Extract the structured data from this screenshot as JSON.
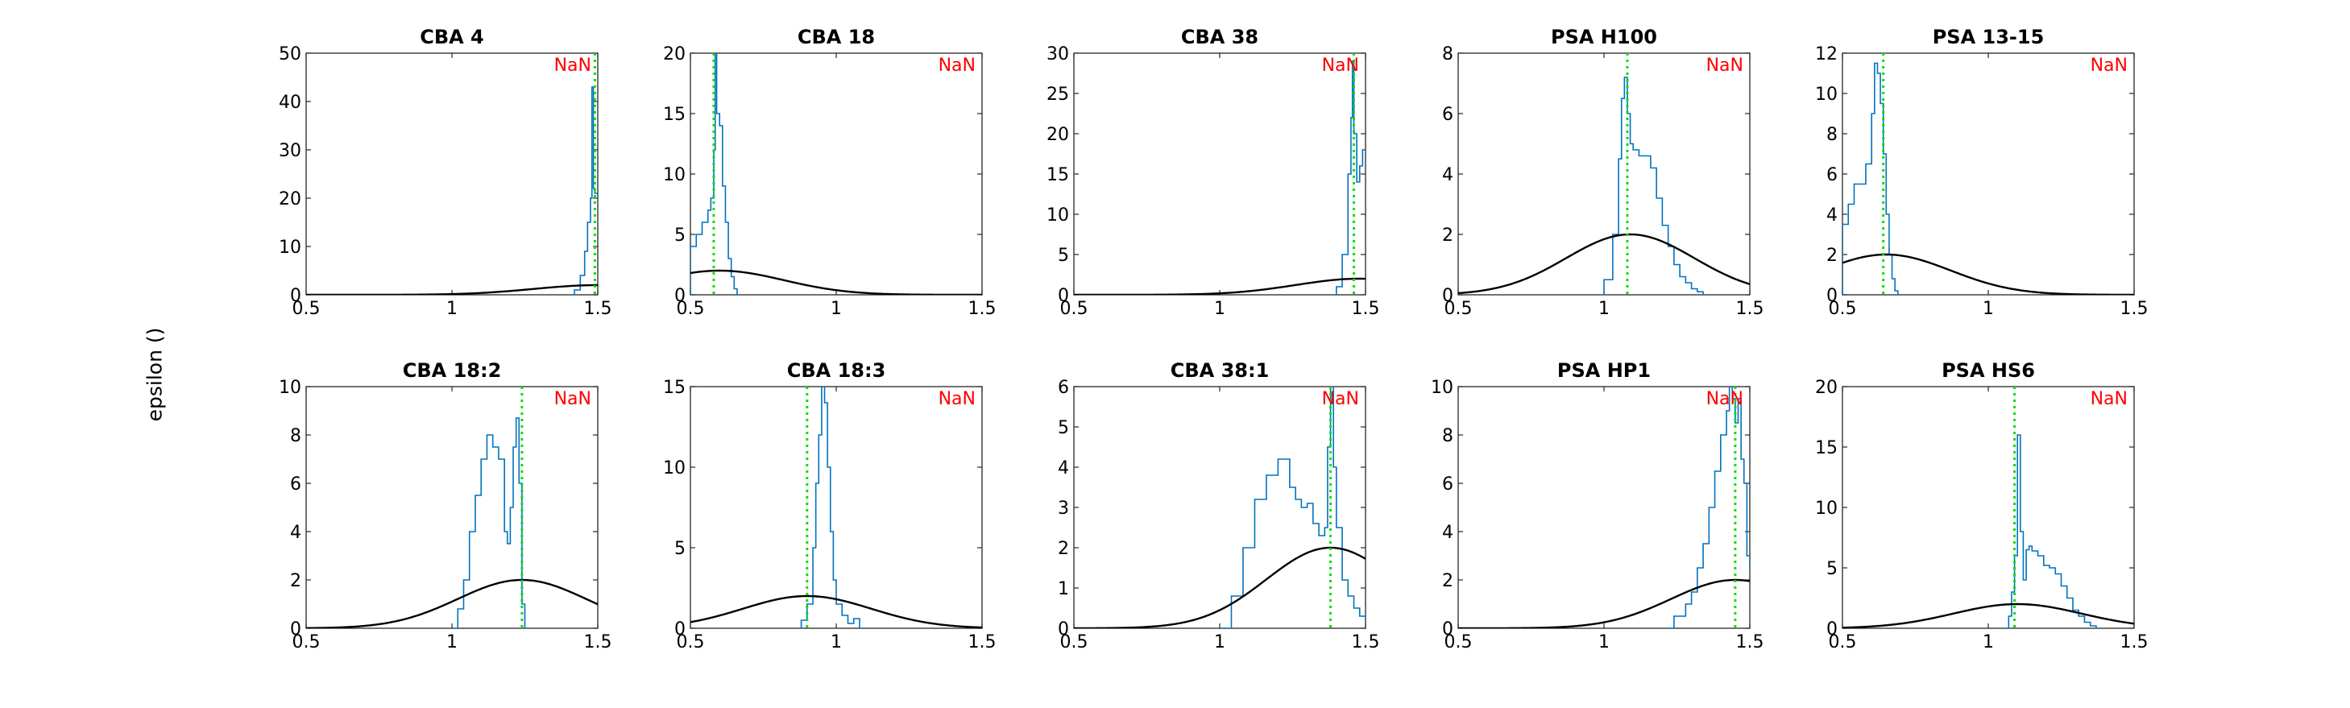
{
  "figure": {
    "ylabel": "epsilon ()",
    "colors": {
      "hist": "#0072bd",
      "curve": "#000000",
      "vline": "#00e000",
      "nan": "#ff0000",
      "axes": "#262626"
    }
  },
  "chart_data": [
    {
      "type": "line",
      "title": "CBA 4",
      "annotation": "NaN",
      "xlim": [
        0.5,
        1.5
      ],
      "ylim": [
        0,
        50
      ],
      "xticks": [
        0.5,
        1,
        1.5
      ],
      "yticks": [
        0,
        10,
        20,
        30,
        40,
        50
      ],
      "vline": 1.49,
      "curve": {
        "mean": 1.5,
        "sd": 0.22,
        "peak": 2
      },
      "hist": {
        "x": [
          1.4,
          1.42,
          1.44,
          1.455,
          1.465,
          1.475,
          1.48,
          1.485,
          1.49,
          1.5
        ],
        "y": [
          0,
          1,
          4,
          9,
          15,
          20,
          43,
          22,
          21,
          20
        ]
      }
    },
    {
      "type": "line",
      "title": "CBA 18",
      "annotation": "NaN",
      "xlim": [
        0.5,
        1.5
      ],
      "ylim": [
        0,
        20
      ],
      "xticks": [
        0.5,
        1,
        1.5
      ],
      "yticks": [
        0,
        5,
        10,
        15,
        20
      ],
      "vline": 0.58,
      "curve": {
        "mean": 0.6,
        "sd": 0.22,
        "peak": 2
      },
      "hist": {
        "x": [
          0.5,
          0.52,
          0.54,
          0.56,
          0.57,
          0.58,
          0.585,
          0.59,
          0.6,
          0.61,
          0.62,
          0.63,
          0.64,
          0.65,
          0.66
        ],
        "y": [
          4,
          5,
          6,
          7,
          8,
          12,
          20,
          15,
          14,
          9,
          6,
          3,
          1.5,
          0.5,
          0
        ]
      }
    },
    {
      "type": "line",
      "title": "CBA 38",
      "annotation": "NaN",
      "xlim": [
        0.5,
        1.5
      ],
      "ylim": [
        0,
        30
      ],
      "xticks": [
        0.5,
        1,
        1.5
      ],
      "yticks": [
        0,
        5,
        10,
        15,
        20,
        25,
        30
      ],
      "vline": 1.46,
      "curve": {
        "mean": 1.48,
        "sd": 0.22,
        "peak": 2
      },
      "hist": {
        "x": [
          1.38,
          1.4,
          1.42,
          1.44,
          1.45,
          1.455,
          1.46,
          1.47,
          1.48,
          1.49,
          1.5
        ],
        "y": [
          0,
          1,
          5,
          15,
          22,
          29,
          20,
          14,
          16,
          18,
          18
        ]
      }
    },
    {
      "type": "line",
      "title": "PSA H100",
      "annotation": "NaN",
      "xlim": [
        0.5,
        1.5
      ],
      "ylim": [
        0,
        8
      ],
      "xticks": [
        0.5,
        1,
        1.5
      ],
      "yticks": [
        0,
        2,
        4,
        6,
        8
      ],
      "vline": 1.08,
      "curve": {
        "mean": 1.09,
        "sd": 0.22,
        "peak": 2
      },
      "hist": {
        "x": [
          0.97,
          1.0,
          1.03,
          1.05,
          1.06,
          1.07,
          1.08,
          1.09,
          1.1,
          1.12,
          1.14,
          1.16,
          1.18,
          1.2,
          1.22,
          1.24,
          1.26,
          1.28,
          1.3,
          1.32,
          1.34
        ],
        "y": [
          0,
          0.5,
          2,
          4.5,
          6.5,
          7.2,
          6.0,
          5.0,
          4.8,
          4.6,
          4.6,
          4.2,
          3.2,
          2.3,
          1.6,
          1.0,
          0.6,
          0.4,
          0.2,
          0.1,
          0
        ]
      }
    },
    {
      "type": "line",
      "title": "PSA 13-15",
      "annotation": "NaN",
      "xlim": [
        0.5,
        1.5
      ],
      "ylim": [
        0,
        12
      ],
      "xticks": [
        0.5,
        1,
        1.5
      ],
      "yticks": [
        0,
        2,
        4,
        6,
        8,
        10,
        12
      ],
      "vline": 0.64,
      "curve": {
        "mean": 0.65,
        "sd": 0.22,
        "peak": 2
      },
      "hist": {
        "x": [
          0.5,
          0.52,
          0.54,
          0.56,
          0.58,
          0.6,
          0.61,
          0.62,
          0.63,
          0.64,
          0.65,
          0.66,
          0.67,
          0.68,
          0.69
        ],
        "y": [
          3.5,
          4.5,
          5.5,
          5.5,
          6.5,
          9,
          11.5,
          11,
          9.5,
          7,
          4,
          2,
          0.8,
          0.2,
          0
        ]
      }
    },
    {
      "type": "line",
      "title": "CBA 18:2",
      "annotation": "NaN",
      "xlim": [
        0.5,
        1.5
      ],
      "ylim": [
        0,
        10
      ],
      "xticks": [
        0.5,
        1,
        1.5
      ],
      "yticks": [
        0,
        2,
        4,
        6,
        8,
        10
      ],
      "vline": 1.24,
      "curve": {
        "mean": 1.24,
        "sd": 0.22,
        "peak": 2
      },
      "hist": {
        "x": [
          1.0,
          1.02,
          1.04,
          1.06,
          1.08,
          1.1,
          1.12,
          1.14,
          1.16,
          1.18,
          1.19,
          1.2,
          1.21,
          1.22,
          1.23,
          1.24,
          1.25
        ],
        "y": [
          0,
          0.8,
          2,
          4,
          5.5,
          7,
          8,
          7.5,
          7.0,
          4,
          3.5,
          5,
          7.5,
          8.7,
          6,
          1,
          0
        ]
      }
    },
    {
      "type": "line",
      "title": "CBA 18:3",
      "annotation": "NaN",
      "xlim": [
        0.5,
        1.5
      ],
      "ylim": [
        0,
        15
      ],
      "xticks": [
        0.5,
        1,
        1.5
      ],
      "yticks": [
        0,
        5,
        10,
        15
      ],
      "vline": 0.9,
      "curve": {
        "mean": 0.9,
        "sd": 0.22,
        "peak": 2
      },
      "hist": {
        "x": [
          0.86,
          0.88,
          0.9,
          0.92,
          0.93,
          0.94,
          0.95,
          0.96,
          0.97,
          0.98,
          0.99,
          1.0,
          1.02,
          1.04,
          1.06,
          1.08
        ],
        "y": [
          0,
          0.5,
          1.5,
          5,
          9,
          12,
          15.2,
          14,
          10,
          6,
          3,
          1.5,
          0.8,
          0.3,
          0.6,
          0
        ]
      }
    },
    {
      "type": "line",
      "title": "CBA 38:1",
      "annotation": "NaN",
      "xlim": [
        0.5,
        1.5
      ],
      "ylim": [
        0,
        6
      ],
      "xticks": [
        0.5,
        1,
        1.5
      ],
      "yticks": [
        0,
        1,
        2,
        3,
        4,
        5,
        6
      ],
      "vline": 1.38,
      "curve": {
        "mean": 1.38,
        "sd": 0.22,
        "peak": 2
      },
      "hist": {
        "x": [
          1.0,
          1.04,
          1.08,
          1.12,
          1.16,
          1.2,
          1.24,
          1.26,
          1.28,
          1.3,
          1.32,
          1.34,
          1.36,
          1.37,
          1.38,
          1.39,
          1.4,
          1.42,
          1.44,
          1.46,
          1.48,
          1.5
        ],
        "y": [
          0,
          0.8,
          2,
          3.2,
          3.8,
          4.2,
          3.5,
          3.2,
          3.0,
          3.1,
          2.6,
          2.3,
          2.5,
          4.5,
          6,
          4,
          2.5,
          1.2,
          0.8,
          0.5,
          0.3,
          0.2
        ]
      }
    },
    {
      "type": "line",
      "title": "PSA HP1",
      "annotation": "NaN",
      "xlim": [
        0.5,
        1.5
      ],
      "ylim": [
        0,
        10
      ],
      "xticks": [
        0.5,
        1,
        1.5
      ],
      "yticks": [
        0,
        2,
        4,
        6,
        8,
        10
      ],
      "vline": 1.45,
      "curve": {
        "mean": 1.45,
        "sd": 0.22,
        "peak": 2
      },
      "hist": {
        "x": [
          1.2,
          1.24,
          1.28,
          1.3,
          1.32,
          1.34,
          1.36,
          1.38,
          1.4,
          1.42,
          1.43,
          1.44,
          1.45,
          1.46,
          1.47,
          1.48,
          1.49,
          1.5
        ],
        "y": [
          0,
          0.5,
          1,
          1.5,
          2.5,
          3.5,
          5,
          6.5,
          8,
          9,
          10,
          9.5,
          8.5,
          9.5,
          7,
          6,
          3,
          2.5
        ]
      }
    },
    {
      "type": "line",
      "title": "PSA HS6",
      "annotation": "NaN",
      "xlim": [
        0.5,
        1.5
      ],
      "ylim": [
        0,
        20
      ],
      "xticks": [
        0.5,
        1,
        1.5
      ],
      "yticks": [
        0,
        5,
        10,
        15,
        20
      ],
      "vline": 1.09,
      "curve": {
        "mean": 1.1,
        "sd": 0.22,
        "peak": 2
      },
      "hist": {
        "x": [
          1.05,
          1.07,
          1.08,
          1.09,
          1.1,
          1.11,
          1.12,
          1.13,
          1.14,
          1.15,
          1.17,
          1.19,
          1.21,
          1.23,
          1.25,
          1.27,
          1.29,
          1.31,
          1.33,
          1.35,
          1.37
        ],
        "y": [
          0,
          1,
          3,
          6,
          16,
          8,
          4,
          6.5,
          6.8,
          6.4,
          6,
          5.2,
          5,
          4.5,
          3.5,
          2.5,
          1.5,
          1.0,
          0.5,
          0.2,
          0
        ]
      }
    }
  ]
}
